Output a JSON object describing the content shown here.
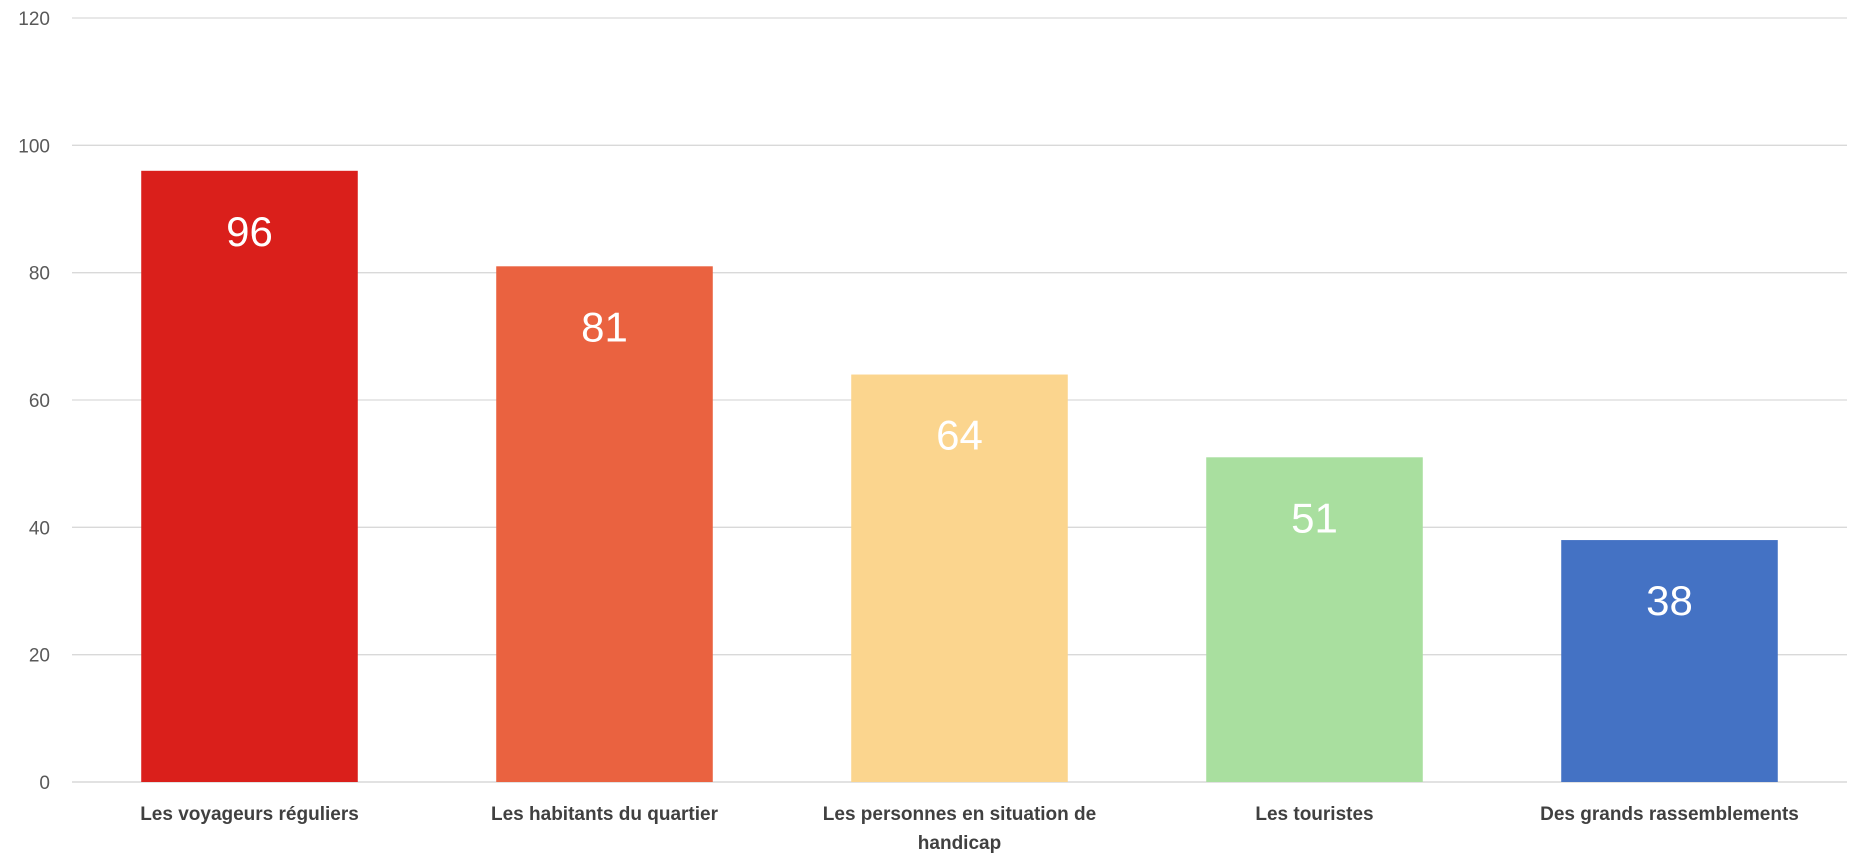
{
  "chart_data": {
    "type": "bar",
    "title": "",
    "xlabel": "",
    "ylabel": "",
    "ylim": [
      0,
      120
    ],
    "yticks": [
      0,
      20,
      40,
      60,
      80,
      100,
      120
    ],
    "grid": true,
    "legend": "none",
    "categories": [
      [
        "Les voyageurs réguliers"
      ],
      [
        "Les habitants du quartier"
      ],
      [
        "Les personnes en situation de",
        "handicap"
      ],
      [
        "Les touristes"
      ],
      [
        "Des grands rassemblements"
      ]
    ],
    "values": [
      96,
      81,
      64,
      51,
      38
    ],
    "data_labels": [
      "96",
      "81",
      "64",
      "51",
      "38"
    ],
    "colors": [
      "#da1f1b",
      "#ea6240",
      "#fbd58e",
      "#a9df9f",
      "#4472c4"
    ]
  }
}
